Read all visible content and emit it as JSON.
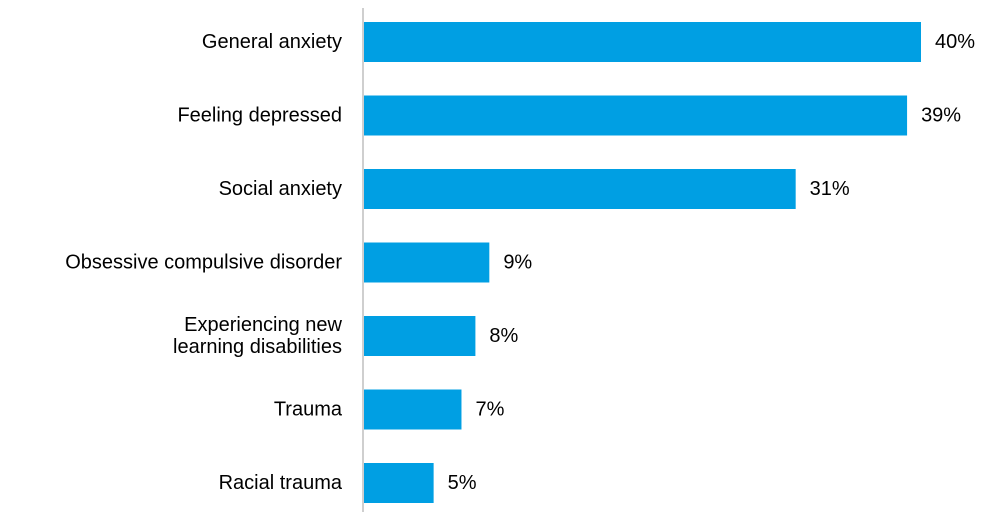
{
  "chart_data": {
    "type": "bar",
    "orientation": "horizontal",
    "categories": [
      [
        "General anxiety"
      ],
      [
        "Feeling depressed"
      ],
      [
        "Social anxiety"
      ],
      [
        "Obsessive compulsive disorder"
      ],
      [
        "Experiencing new",
        "learning disabilities"
      ],
      [
        "Trauma"
      ],
      [
        "Racial trauma"
      ]
    ],
    "values": [
      40,
      39,
      31,
      9,
      8,
      7,
      5
    ],
    "value_labels": [
      "40%",
      "39%",
      "31%",
      "9%",
      "8%",
      "7%",
      "5%"
    ],
    "unit": "%",
    "bar_color": "#009FE3",
    "axis_color": "#BFBFBF",
    "xlim": [
      0,
      40
    ],
    "grid": false,
    "legend": "none"
  }
}
